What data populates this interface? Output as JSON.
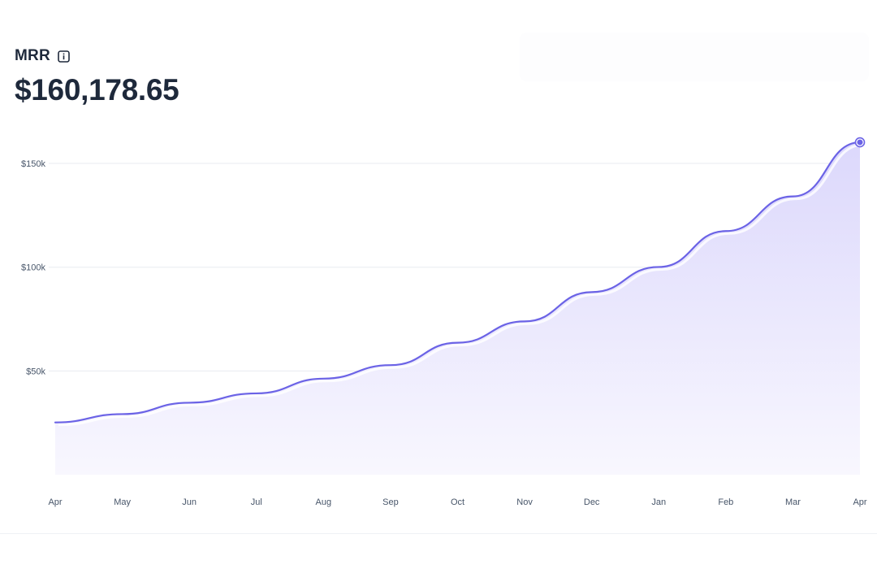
{
  "metric": {
    "title": "MRR",
    "value": "$160,178.65"
  },
  "icons": {
    "info": "info-icon"
  },
  "colors": {
    "line": "#6b63e6",
    "area_top": "#dcd8fc",
    "area_bottom": "#f8f7fe",
    "grid": "#e8ebf0",
    "text": "#1e293b",
    "tick": "#475569"
  },
  "chart_data": {
    "type": "area",
    "x": [
      "Apr",
      "May",
      "Jun",
      "Jul",
      "Aug",
      "Sep",
      "Oct",
      "Nov",
      "Dec",
      "Jan",
      "Feb",
      "Mar",
      "Apr"
    ],
    "series": [
      {
        "values": [
          25200,
          29200,
          34700,
          39200,
          46300,
          52800,
          63600,
          73900,
          88000,
          100100,
          117400,
          134100,
          160178.65
        ]
      }
    ],
    "y_ticks": [
      50000,
      100000,
      150000
    ],
    "y_tick_labels": [
      "$50k",
      "$100k",
      "$150k"
    ],
    "ylim": [
      0,
      170000
    ],
    "grid": true,
    "legend": "none",
    "highlight_last_point": true,
    "title": "MRR",
    "xlabel": "",
    "ylabel": ""
  }
}
